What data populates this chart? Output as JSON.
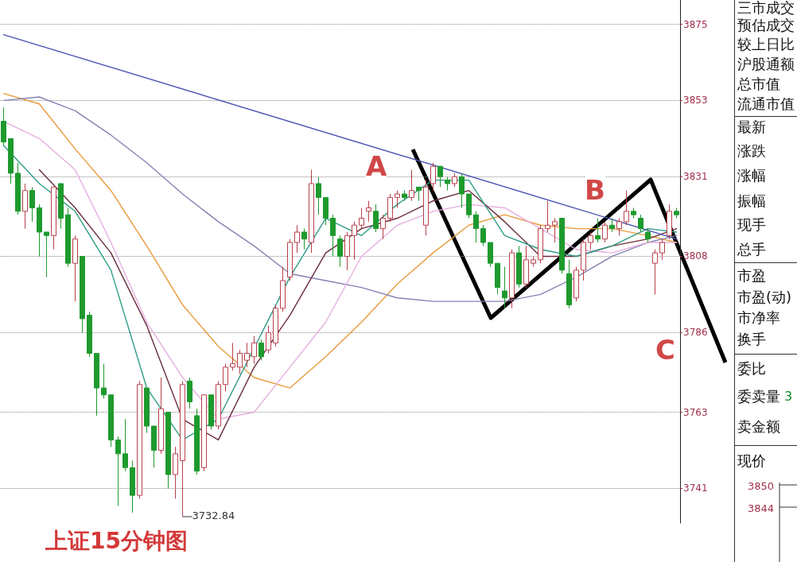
{
  "chart_data": [
    {
      "type": "candlestick",
      "title": "上证15分钟图",
      "categories": [
        null,
        null,
        null,
        null,
        null,
        null,
        null,
        null,
        null,
        null,
        null,
        null,
        null,
        null,
        null,
        null,
        null,
        null,
        null,
        null,
        null,
        null,
        null,
        null,
        null,
        null,
        null,
        null,
        null,
        null,
        null,
        null,
        null,
        null,
        null,
        null,
        null,
        null,
        null,
        null,
        null,
        null,
        null,
        null,
        null,
        null,
        null,
        null,
        null,
        null,
        null,
        null,
        null,
        null,
        null,
        null,
        null,
        null,
        null,
        null,
        null,
        null,
        null,
        null,
        null,
        null,
        null,
        null,
        null,
        null,
        null,
        null,
        null,
        null,
        null,
        null,
        null,
        null,
        null,
        null,
        null,
        null,
        null,
        null,
        null,
        null,
        null,
        null,
        null,
        null,
        null,
        null,
        null,
        null,
        null
      ],
      "ohlc": [
        [
          3847,
          3851,
          3840,
          3841
        ],
        [
          3842,
          3842,
          3829,
          3832
        ],
        [
          3832,
          3835,
          3820,
          3821
        ],
        [
          3821,
          3829,
          3816,
          3827
        ],
        [
          3827,
          3828,
          3818,
          3822
        ],
        [
          3822,
          3823,
          3808,
          3815
        ],
        [
          3815,
          3815,
          3802,
          3814
        ],
        [
          3814,
          3828,
          3810,
          3828
        ],
        [
          3829,
          3829,
          3816,
          3819
        ],
        [
          3820,
          3822,
          3805,
          3806
        ],
        [
          3806,
          3814,
          3795,
          3813
        ],
        [
          3808,
          3808,
          3786,
          3790
        ],
        [
          3791,
          3792,
          3779,
          3780
        ],
        [
          3780,
          3780,
          3762,
          3770
        ],
        [
          3770,
          3777,
          3767,
          3768
        ],
        [
          3768,
          3768,
          3753,
          3755
        ],
        [
          3755,
          3756,
          3736,
          3751
        ],
        [
          3751,
          3761,
          3746,
          3747
        ],
        [
          3747,
          3749,
          3734,
          3739
        ],
        [
          3739,
          3772,
          3738,
          3771
        ],
        [
          3770,
          3770,
          3757,
          3759
        ],
        [
          3759,
          3759,
          3747,
          3752
        ],
        [
          3752,
          3773,
          3751,
          3764
        ],
        [
          3763,
          3763,
          3741,
          3745
        ],
        [
          3745,
          3753,
          3738,
          3751
        ],
        [
          3749,
          3772,
          3732.84,
          3771
        ],
        [
          3772,
          3773,
          3764,
          3766
        ],
        [
          3762,
          3764,
          3745,
          3746
        ],
        [
          3747,
          3768,
          3746,
          3768
        ],
        [
          3768,
          3768,
          3758,
          3759
        ],
        [
          3759,
          3772,
          3758,
          3771
        ],
        [
          3771,
          3777,
          3769,
          3776
        ],
        [
          3776,
          3783,
          3775,
          3777
        ],
        [
          3776,
          3781,
          3774,
          3780
        ],
        [
          3778,
          3783,
          3776,
          3780
        ],
        [
          3779,
          3785,
          3777,
          3783
        ],
        [
          3783,
          3784,
          3778,
          3779
        ],
        [
          3781,
          3788,
          3780,
          3786
        ],
        [
          3783,
          3794,
          3782,
          3793
        ],
        [
          3793,
          3805,
          3792,
          3801
        ],
        [
          3802,
          3813,
          3801,
          3812
        ],
        [
          3812,
          3817,
          3809,
          3815
        ],
        [
          3815,
          3816,
          3810,
          3813
        ],
        [
          3812,
          3833,
          3809,
          3829
        ],
        [
          3829,
          3831,
          3820,
          3825
        ],
        [
          3825,
          3825,
          3817,
          3819
        ],
        [
          3819,
          3820,
          3808,
          3814
        ],
        [
          3813,
          3814,
          3805,
          3808
        ],
        [
          3808,
          3815,
          3804,
          3814
        ],
        [
          3814,
          3818,
          3807,
          3817
        ],
        [
          3817,
          3822,
          3816,
          3819
        ],
        [
          3821,
          3824,
          3818,
          3822
        ],
        [
          3821,
          3823,
          3815,
          3816
        ],
        [
          3816,
          3820,
          3813,
          3819
        ],
        [
          3819,
          3826,
          3818,
          3825
        ],
        [
          3825,
          3827,
          3822,
          3826
        ],
        [
          3826,
          3827,
          3824,
          3825
        ],
        [
          3825,
          3833,
          3824,
          3827
        ],
        [
          3828,
          3828,
          3824,
          3827
        ],
        [
          3817,
          3830,
          3814,
          3828
        ],
        [
          3829,
          3835,
          3827,
          3834
        ],
        [
          3834,
          3834,
          3828,
          3831
        ],
        [
          3830,
          3831,
          3827,
          3829
        ],
        [
          3829,
          3832,
          3828,
          3831
        ],
        [
          3831,
          3832,
          3822,
          3826
        ],
        [
          3826,
          3826,
          3819,
          3820
        ],
        [
          3820,
          3821,
          3812,
          3816
        ],
        [
          3816,
          3817,
          3811,
          3812
        ],
        [
          3812,
          3812,
          3805,
          3806
        ],
        [
          3806,
          3806,
          3797,
          3799
        ],
        [
          3798,
          3805,
          3793,
          3796
        ],
        [
          3796,
          3810,
          3793,
          3809
        ],
        [
          3809,
          3811,
          3799,
          3800
        ],
        [
          3800,
          3811,
          3799,
          3807
        ],
        [
          3806,
          3808,
          3805,
          3807
        ],
        [
          3807,
          3817,
          3806,
          3816
        ],
        [
          3816,
          3824,
          3815,
          3817
        ],
        [
          3817,
          3819,
          3812,
          3818
        ],
        [
          3819,
          3819,
          3803,
          3804
        ],
        [
          3803,
          3807,
          3793,
          3794
        ],
        [
          3796,
          3805,
          3795,
          3804
        ],
        [
          3804,
          3813,
          3801,
          3812
        ],
        [
          3812,
          3815,
          3810,
          3814
        ],
        [
          3814,
          3819,
          3812,
          3813
        ],
        [
          3813,
          3818,
          3812,
          3817
        ],
        [
          3817,
          3819,
          3815,
          3816
        ],
        [
          3816,
          3819,
          3814,
          3818
        ],
        [
          3818,
          3827,
          3817,
          3821
        ],
        [
          3821,
          3822,
          3819,
          3820
        ],
        [
          3819,
          3820,
          3815,
          3816
        ],
        [
          3815,
          3816,
          3812,
          3813
        ],
        [
          3806,
          3810,
          3797,
          3809
        ],
        [
          3809,
          3813,
          3807,
          3812
        ],
        [
          3814,
          3823,
          3813,
          3821
        ],
        [
          3821,
          3822,
          3819,
          3820
        ]
      ],
      "colors": [
        "#1e9a2e",
        "#1e9a2e",
        "#1e9a2e",
        "#b8404c",
        "#1e9a2e",
        "#1e9a2e",
        "#1e9a2e",
        "#b8404c",
        "#1e9a2e",
        "#1e9a2e",
        "#b8404c",
        "#1e9a2e",
        "#1e9a2e",
        "#1e9a2e",
        "#1e9a2e",
        "#1e9a2e",
        "#1e9a2e",
        "#1e9a2e",
        "#1e9a2e",
        "#b8404c",
        "#1e9a2e",
        "#1e9a2e",
        "#b8404c",
        "#1e9a2e",
        "#b8404c",
        "#b8404c",
        "#1e9a2e",
        "#1e9a2e",
        "#b8404c",
        "#1e9a2e",
        "#b8404c",
        "#b8404c",
        "#b8404c",
        "#b8404c",
        "#b8404c",
        "#b8404c",
        "#1e9a2e",
        "#b8404c",
        "#b8404c",
        "#b8404c",
        "#b8404c",
        "#b8404c",
        "#1e9a2e",
        "#b8404c",
        "#1e9a2e",
        "#1e9a2e",
        "#1e9a2e",
        "#1e9a2e",
        "#b8404c",
        "#b8404c",
        "#b8404c",
        "#b8404c",
        "#1e9a2e",
        "#b8404c",
        "#b8404c",
        "#b8404c",
        "#1e9a2e",
        "#b8404c",
        "#1e9a2e",
        "#b8404c",
        "#b8404c",
        "#1e9a2e",
        "#1e9a2e",
        "#b8404c",
        "#1e9a2e",
        "#1e9a2e",
        "#1e9a2e",
        "#1e9a2e",
        "#1e9a2e",
        "#1e9a2e",
        "#1e9a2e",
        "#b8404c",
        "#1e9a2e",
        "#b8404c",
        "#b8404c",
        "#b8404c",
        "#b8404c",
        "#b8404c",
        "#1e9a2e",
        "#1e9a2e",
        "#b8404c",
        "#b8404c",
        "#b8404c",
        "#1e9a2e",
        "#b8404c",
        "#1e9a2e",
        "#b8404c",
        "#b8404c",
        "#1e9a2e",
        "#1e9a2e",
        "#1e9a2e",
        "#b8404c",
        "#b8404c",
        "#b8404c",
        "#1e9a2e"
      ],
      "series": [
        {
          "type": "line",
          "color": "#e89a3c",
          "values": [
            3855,
            null,
            null,
            null,
            null,
            3852,
            null,
            null,
            null,
            null,
            3839,
            null,
            null,
            null,
            null,
            3827,
            null,
            null,
            null,
            null,
            3811,
            null,
            null,
            null,
            null,
            3794,
            null,
            null,
            null,
            null,
            3782,
            null,
            null,
            null,
            null,
            3773,
            null,
            null,
            null,
            null,
            3770,
            null,
            null,
            null,
            null,
            3779,
            null,
            null,
            null,
            null,
            3789,
            null,
            null,
            null,
            null,
            3800,
            null,
            null,
            null,
            null,
            3809,
            null,
            null,
            null,
            null,
            3817,
            null,
            null,
            null,
            null,
            3820,
            null,
            null,
            null,
            null,
            3817,
            null,
            null,
            null,
            null,
            3816,
            null,
            null,
            null,
            null,
            3816,
            null,
            null,
            null,
            null,
            3814,
            null,
            null,
            null,
            3812
          ]
        },
        {
          "type": "line",
          "color": "#8484b4",
          "values": [
            3853,
            null,
            null,
            null,
            null,
            3854,
            null,
            null,
            null,
            null,
            3850,
            null,
            null,
            null,
            null,
            3843,
            null,
            null,
            null,
            null,
            3835,
            null,
            null,
            null,
            null,
            3826,
            null,
            null,
            null,
            null,
            3818,
            null,
            null,
            null,
            null,
            3811,
            null,
            null,
            null,
            null,
            3803,
            null,
            null,
            null,
            null,
            3801,
            null,
            null,
            null,
            null,
            3799,
            null,
            null,
            null,
            null,
            3796,
            null,
            null,
            null,
            null,
            3795,
            null,
            null,
            null,
            null,
            3795,
            null,
            null,
            null,
            null,
            3795,
            null,
            null,
            null,
            null,
            3797,
            null,
            null,
            null,
            null,
            3802,
            null,
            null,
            null,
            null,
            3808,
            null,
            null,
            null,
            null,
            3812,
            null,
            null,
            null,
            3814
          ]
        },
        {
          "type": "line",
          "color": "#e6aee0",
          "values": [
            3847,
            null,
            null,
            null,
            null,
            3842,
            null,
            null,
            null,
            null,
            3833,
            null,
            null,
            null,
            null,
            3812,
            null,
            null,
            null,
            null,
            3789,
            null,
            null,
            null,
            null,
            3773,
            null,
            null,
            null,
            null,
            3761,
            null,
            null,
            null,
            null,
            3763,
            null,
            null,
            null,
            null,
            3776,
            null,
            null,
            null,
            null,
            3789,
            null,
            null,
            null,
            null,
            3808,
            null,
            null,
            null,
            null,
            3817,
            null,
            null,
            null,
            null,
            3821,
            null,
            null,
            null,
            null,
            3823,
            null,
            null,
            null,
            null,
            3822,
            null,
            null,
            null,
            null,
            3816,
            null,
            null,
            null,
            null,
            3810,
            null,
            null,
            null,
            null,
            3809,
            null,
            null,
            null,
            null,
            3812,
            null,
            null,
            null,
            3812
          ]
        },
        {
          "type": "line",
          "color": "#6b2d3c",
          "values": [
            null,
            null,
            null,
            null,
            null,
            3833,
            null,
            null,
            null,
            null,
            3822,
            null,
            null,
            null,
            null,
            3809,
            null,
            null,
            null,
            null,
            3788,
            null,
            null,
            null,
            null,
            3761,
            null,
            null,
            null,
            null,
            3755,
            null,
            null,
            null,
            null,
            3776,
            null,
            null,
            null,
            null,
            3791,
            null,
            null,
            null,
            null,
            3809,
            null,
            null,
            null,
            null,
            3816,
            null,
            null,
            null,
            null,
            3819,
            null,
            null,
            null,
            null,
            3824,
            null,
            null,
            null,
            null,
            3827,
            null,
            null,
            null,
            null,
            3818,
            null,
            null,
            null,
            null,
            3808,
            null,
            null,
            null,
            null,
            3808,
            null,
            null,
            null,
            null,
            3811,
            null,
            null,
            null,
            null,
            3813,
            null,
            null,
            null,
            3816
          ]
        },
        {
          "type": "line",
          "color": "#2f9c86",
          "values": [
            3840,
            null,
            null,
            null,
            null,
            3829,
            null,
            null,
            null,
            null,
            3821,
            null,
            null,
            null,
            null,
            3804,
            null,
            null,
            null,
            null,
            3770,
            null,
            null,
            null,
            null,
            3755,
            null,
            null,
            null,
            null,
            3761,
            null,
            null,
            null,
            null,
            null,
            null,
            null,
            null,
            null,
            3802,
            null,
            null,
            null,
            null,
            3819,
            null,
            null,
            null,
            null,
            3814,
            null,
            null,
            null,
            null,
            3823,
            null,
            null,
            null,
            null,
            3830,
            null,
            null,
            null,
            null,
            3830,
            null,
            null,
            null,
            null,
            3814,
            null,
            null,
            null,
            null,
            3810,
            null,
            null,
            null,
            null,
            3808,
            null,
            null,
            null,
            null,
            3811,
            null,
            null,
            null,
            null,
            3816,
            null,
            null,
            null,
            3815
          ]
        },
        {
          "type": "line",
          "color": "#4a52b0",
          "values": [
            3872,
            null,
            null,
            null,
            null,
            null,
            null,
            null,
            null,
            null,
            null,
            null,
            null,
            null,
            null,
            null,
            null,
            null,
            null,
            null,
            null,
            null,
            null,
            null,
            null,
            null,
            null,
            null,
            null,
            null,
            null,
            null,
            null,
            null,
            null,
            null,
            null,
            null,
            null,
            null,
            null,
            null,
            null,
            null,
            null,
            null,
            null,
            null,
            null,
            null,
            null,
            null,
            null,
            null,
            null,
            null,
            null,
            null,
            null,
            null,
            null,
            null,
            null,
            null,
            null,
            null,
            null,
            null,
            null,
            null,
            null,
            null,
            null,
            null,
            null,
            null,
            null,
            null,
            null,
            null,
            null,
            null,
            null,
            null,
            null,
            null,
            null,
            null,
            null,
            null,
            null,
            null,
            null,
            null,
            3813
          ]
        }
      ],
      "ylim": [
        3731,
        3882
      ],
      "yticks": [
        3741,
        3763,
        3786,
        3808,
        3831,
        3853,
        3875
      ],
      "grid": "y",
      "tick_labels": "y",
      "marker": "none",
      "line_style": "solid",
      "annotations": [
        "A",
        "B",
        "C",
        "3732.84"
      ]
    },
    {
      "type": "other",
      "annotations": [
        "三市成交",
        "预估成交",
        "较上日比",
        "沪股通额",
        "总市值",
        "流通市值",
        "最新",
        "涨跌",
        "涨幅",
        "振幅",
        "现手",
        "总手",
        "市盈",
        "市盈(动)",
        "市净率",
        "换手",
        "委比",
        "委卖量",
        "3",
        "卖金额",
        "现价",
        "3850",
        "3844"
      ]
    }
  ]
}
